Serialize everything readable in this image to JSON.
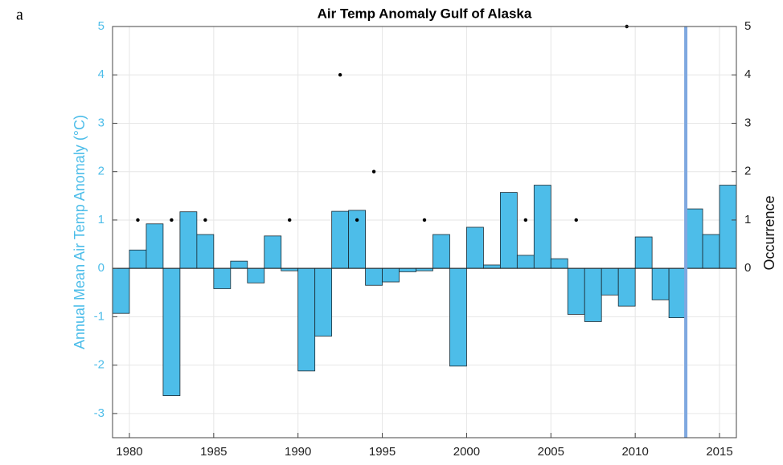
{
  "panel_label": "a",
  "chart_data": {
    "type": "bar",
    "title": "Air Temp Anomaly Gulf of Alaska",
    "y_label": "Annual Mean Air Temp Anomaly (°C)",
    "y2_label": "Occurrence",
    "x": [
      1979,
      1980,
      1981,
      1982,
      1983,
      1984,
      1985,
      1986,
      1987,
      1988,
      1989,
      1990,
      1991,
      1992,
      1993,
      1994,
      1995,
      1996,
      1997,
      1998,
      1999,
      2000,
      2001,
      2002,
      2003,
      2004,
      2005,
      2006,
      2007,
      2008,
      2009,
      2010,
      2011,
      2012,
      2013,
      2014,
      2015
    ],
    "values": [
      -0.93,
      0.38,
      0.92,
      -2.63,
      1.17,
      0.7,
      -0.42,
      0.15,
      -0.3,
      0.67,
      -0.05,
      -2.12,
      -1.4,
      1.18,
      1.2,
      -0.35,
      -0.28,
      -0.07,
      -0.05,
      0.7,
      -2.02,
      0.85,
      0.07,
      1.57,
      0.27,
      1.72,
      0.2,
      -0.95,
      -1.1,
      -0.55,
      -0.78,
      0.65,
      -0.65,
      -1.02,
      1.23,
      0.7,
      1.72
    ],
    "color": "#4dbde9",
    "points": {
      "type": "scatter",
      "axis": "y2",
      "color": "#000000",
      "x": [
        1980.5,
        1982.5,
        1984.5,
        1989.5,
        1992.5,
        1993.5,
        1994.5,
        1997.5,
        2003.5,
        2006.5,
        2009.5
      ],
      "values": [
        1,
        1,
        1,
        1,
        4,
        1,
        2,
        1,
        1,
        1,
        5
      ]
    },
    "vline": {
      "x": 2013,
      "color": "#7fa8e0"
    },
    "xlim": [
      1979,
      2016
    ],
    "xticks": [
      1980,
      1985,
      1990,
      1995,
      2000,
      2005,
      2010,
      2015
    ],
    "ylim": [
      -3.5,
      5
    ],
    "yticks": [
      -3,
      -2,
      -1,
      0,
      1,
      2,
      3,
      4,
      5
    ],
    "y2lim": [
      -3.5,
      5
    ],
    "y2ticks": [
      0,
      1,
      2,
      3,
      4,
      5
    ],
    "grid": true
  }
}
